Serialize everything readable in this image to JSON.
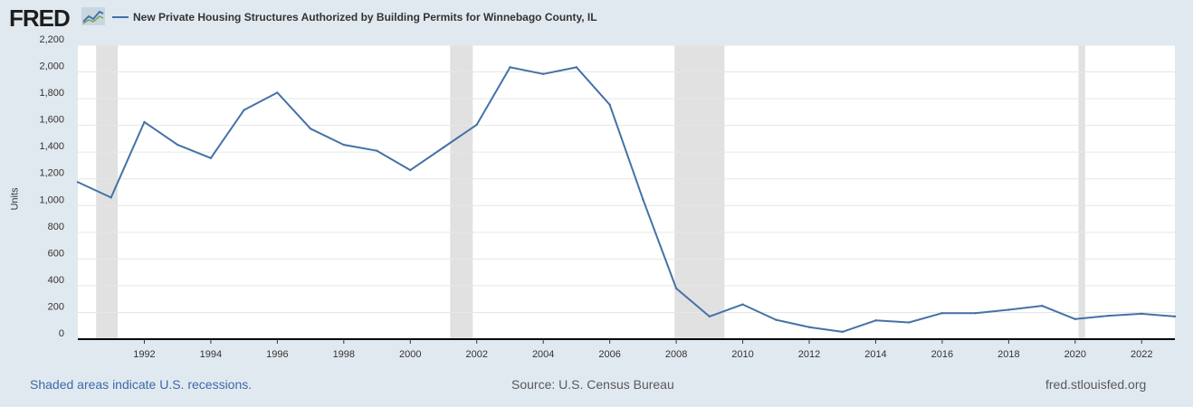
{
  "header": {
    "logo_text": "FRED",
    "series_title": "New Private Housing Structures Authorized by Building Permits for Winnebago County, IL"
  },
  "footer": {
    "recessions_note": "Shaded areas indicate U.S. recessions.",
    "source": "Source: U.S. Census Bureau",
    "site": "fred.stlouisfed.org"
  },
  "colors": {
    "line": "#4572a7",
    "recession": "#e1e1e1",
    "background": "#e1e9f0",
    "plot_bg": "#ffffff",
    "grid": "#e6e6e6"
  },
  "chart_data": {
    "type": "line",
    "title": "New Private Housing Structures Authorized by Building Permits for Winnebago County, IL",
    "xlabel": "",
    "ylabel": "Units",
    "xlim": [
      1990,
      2023
    ],
    "ylim": [
      0,
      2200
    ],
    "x_ticks": [
      1992,
      1994,
      1996,
      1998,
      2000,
      2002,
      2004,
      2006,
      2008,
      2010,
      2012,
      2014,
      2016,
      2018,
      2020,
      2022
    ],
    "x_tick_labels": [
      "1992",
      "1994",
      "1996",
      "1998",
      "2000",
      "2002",
      "2004",
      "2006",
      "2008",
      "2010",
      "2012",
      "2014",
      "2016",
      "2018",
      "2020",
      "2022"
    ],
    "y_ticks": [
      0,
      200,
      400,
      600,
      800,
      1000,
      1200,
      1400,
      1600,
      1800,
      2000,
      2200
    ],
    "y_tick_labels": [
      "0",
      "200",
      "400",
      "600",
      "800",
      "1,000",
      "1,200",
      "1,400",
      "1,600",
      "1,800",
      "2,000",
      "2,200"
    ],
    "grid": true,
    "recessions": [
      [
        1990.55,
        1991.2
      ],
      [
        2001.2,
        2001.88
      ],
      [
        2007.95,
        2009.45
      ],
      [
        2020.1,
        2020.3
      ]
    ],
    "series": [
      {
        "name": "New Private Housing Structures Authorized by Building Permits for Winnebago County, IL",
        "x": [
          1990,
          1991,
          1992,
          1993,
          1994,
          1995,
          1996,
          1997,
          1998,
          1999,
          2000,
          2001,
          2002,
          2003,
          2004,
          2005,
          2006,
          2007,
          2008,
          2009,
          2010,
          2011,
          2012,
          2013,
          2014,
          2015,
          2016,
          2017,
          2018,
          2019,
          2020,
          2021,
          2022,
          2023
        ],
        "values": [
          1175,
          1060,
          1625,
          1455,
          1355,
          1715,
          1845,
          1575,
          1455,
          1410,
          1265,
          1435,
          1605,
          2035,
          1985,
          2035,
          1755,
          1045,
          380,
          170,
          260,
          145,
          90,
          55,
          140,
          125,
          195,
          195,
          220,
          250,
          150,
          175,
          190,
          170
        ]
      }
    ]
  }
}
